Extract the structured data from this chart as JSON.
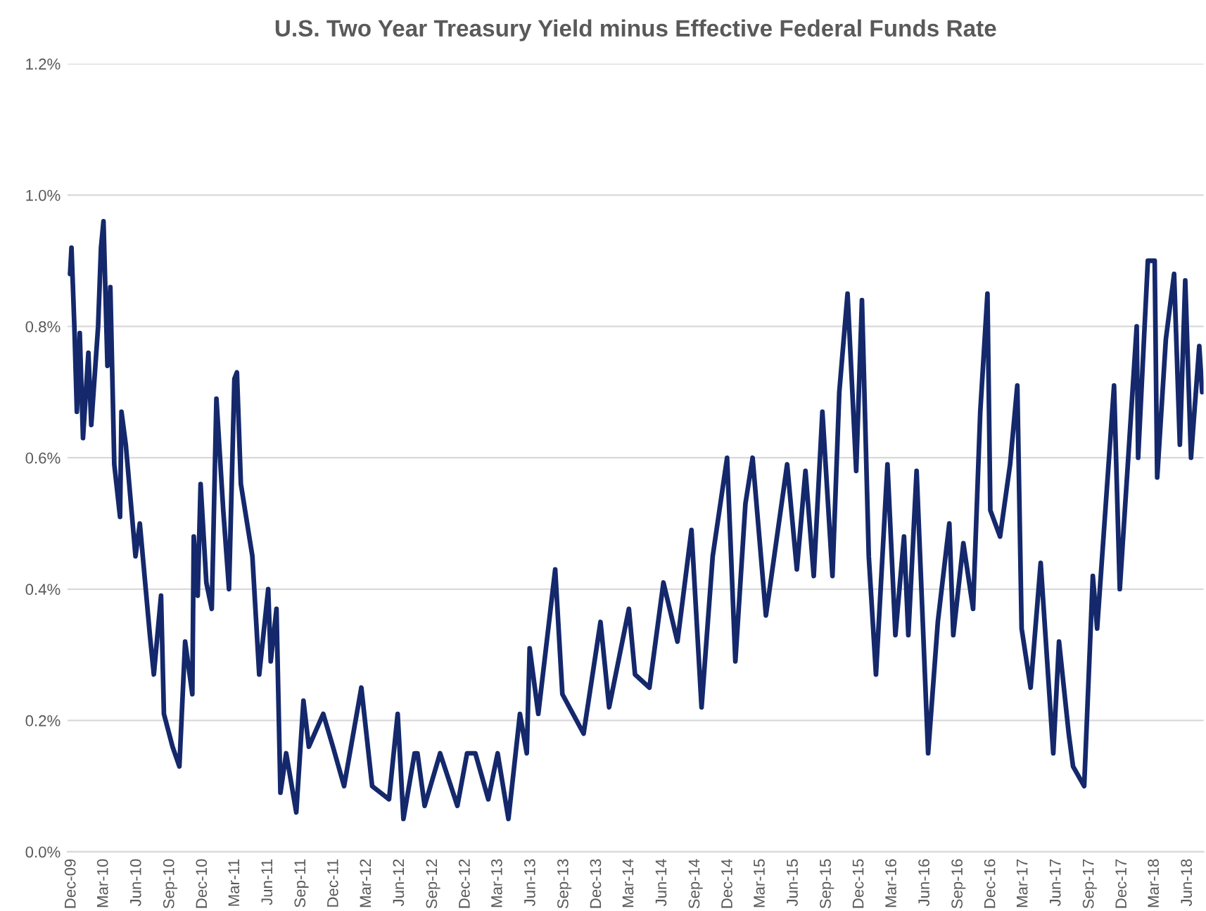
{
  "chart_data": {
    "type": "line",
    "title": "U.S. Two Year Treasury Yield minus Effective Federal Funds Rate",
    "x": [
      "2009-11-27",
      "2009-12-01",
      "2009-12-09",
      "2009-12-16",
      "2009-12-24",
      "2010-01-02",
      "2010-01-17",
      "2010-01-25",
      "2010-02-13",
      "2010-02-21",
      "2010-02-28",
      "2010-03-11",
      "2010-03-19",
      "2010-03-30",
      "2010-04-15",
      "2010-04-19",
      "2010-05-01",
      "2010-05-28",
      "2010-06-09",
      "2010-07-07",
      "2010-07-18",
      "2010-08-07",
      "2010-08-15",
      "2010-09-08",
      "2010-09-27",
      "2010-10-13",
      "2010-11-02",
      "2010-11-06",
      "2010-11-17",
      "2010-11-25",
      "2010-12-11",
      "2010-12-26",
      "2011-01-08",
      "2011-01-27",
      "2011-02-12",
      "2011-02-27",
      "2011-03-06",
      "2011-03-17",
      "2011-04-18",
      "2011-05-07",
      "2011-06-01",
      "2011-06-08",
      "2011-06-24",
      "2011-07-05",
      "2011-07-21",
      "2011-08-18",
      "2011-09-07",
      "2011-09-22",
      "2011-11-01",
      "2011-11-28",
      "2011-12-29",
      "2012-02-15",
      "2012-03-16",
      "2012-05-02",
      "2012-05-26",
      "2012-06-11",
      "2012-07-12",
      "2012-07-20",
      "2012-08-09",
      "2012-09-21",
      "2012-11-08",
      "2012-12-05",
      "2012-12-28",
      "2013-02-02",
      "2013-02-28",
      "2013-03-30",
      "2013-05-01",
      "2013-05-20",
      "2013-05-28",
      "2013-06-21",
      "2013-08-07",
      "2013-08-27",
      "2013-10-25",
      "2013-12-11",
      "2014-01-04",
      "2014-02-28",
      "2014-03-17",
      "2014-04-26",
      "2014-06-04",
      "2014-07-13",
      "2014-08-21",
      "2014-09-18",
      "2014-10-19",
      "2014-11-28",
      "2014-12-21",
      "2015-01-18",
      "2015-02-07",
      "2015-03-16",
      "2015-05-14",
      "2015-06-10",
      "2015-07-04",
      "2015-07-27",
      "2015-08-20",
      "2015-09-17",
      "2015-10-06",
      "2015-10-29",
      "2015-11-22",
      "2015-12-08",
      "2015-12-27",
      "2016-01-16",
      "2016-02-17",
      "2016-03-10",
      "2016-04-03",
      "2016-04-15",
      "2016-05-08",
      "2016-06-09",
      "2016-07-06",
      "2016-08-07",
      "2016-08-18",
      "2016-09-15",
      "2016-10-12",
      "2016-11-01",
      "2016-11-21",
      "2016-11-29",
      "2016-12-26",
      "2017-01-23",
      "2017-02-12",
      "2017-02-24",
      "2017-03-21",
      "2017-04-18",
      "2017-05-23",
      "2017-06-08",
      "2017-07-05",
      "2017-07-17",
      "2017-08-17",
      "2017-09-10",
      "2017-09-22",
      "2017-11-08",
      "2017-11-24",
      "2018-01-10",
      "2018-01-14",
      "2018-02-10",
      "2018-03-01",
      "2018-03-08",
      "2018-04-01",
      "2018-04-24",
      "2018-05-10",
      "2018-05-25",
      "2018-06-10",
      "2018-07-03",
      "2018-07-11"
    ],
    "series": [
      {
        "color": "#14286b",
        "values": [
          0.88,
          0.92,
          0.8,
          0.67,
          0.79,
          0.63,
          0.76,
          0.65,
          0.8,
          0.92,
          0.96,
          0.74,
          0.86,
          0.59,
          0.51,
          0.67,
          0.62,
          0.45,
          0.5,
          0.33,
          0.27,
          0.39,
          0.21,
          0.16,
          0.13,
          0.32,
          0.24,
          0.48,
          0.39,
          0.56,
          0.41,
          0.37,
          0.69,
          0.52,
          0.4,
          0.72,
          0.73,
          0.56,
          0.45,
          0.27,
          0.4,
          0.29,
          0.37,
          0.09,
          0.15,
          0.06,
          0.23,
          0.16,
          0.21,
          0.16,
          0.1,
          0.25,
          0.1,
          0.08,
          0.21,
          0.05,
          0.15,
          0.15,
          0.07,
          0.15,
          0.07,
          0.15,
          0.15,
          0.08,
          0.15,
          0.05,
          0.21,
          0.15,
          0.31,
          0.21,
          0.43,
          0.24,
          0.18,
          0.35,
          0.22,
          0.37,
          0.27,
          0.25,
          0.41,
          0.32,
          0.49,
          0.22,
          0.45,
          0.6,
          0.29,
          0.53,
          0.6,
          0.36,
          0.59,
          0.43,
          0.58,
          0.42,
          0.67,
          0.42,
          0.7,
          0.85,
          0.58,
          0.84,
          0.45,
          0.27,
          0.59,
          0.33,
          0.48,
          0.33,
          0.58,
          0.15,
          0.35,
          0.5,
          0.33,
          0.47,
          0.37,
          0.67,
          0.85,
          0.52,
          0.48,
          0.59,
          0.71,
          0.34,
          0.25,
          0.44,
          0.15,
          0.32,
          0.18,
          0.13,
          0.1,
          0.42,
          0.34,
          0.71,
          0.4,
          0.8,
          0.6,
          0.9,
          0.9,
          0.57,
          0.78,
          0.88,
          0.62,
          0.87,
          0.6,
          0.77,
          0.7
        ]
      }
    ],
    "xlim": [
      "2009-11-20",
      "2018-07-15"
    ],
    "xticks": [
      {
        "value": "2009-12-01",
        "label": "Dec-09"
      },
      {
        "value": "2010-03-01",
        "label": "Mar-10"
      },
      {
        "value": "2010-06-01",
        "label": "Jun-10"
      },
      {
        "value": "2010-09-01",
        "label": "Sep-10"
      },
      {
        "value": "2010-12-01",
        "label": "Dec-10"
      },
      {
        "value": "2011-03-01",
        "label": "Mar-11"
      },
      {
        "value": "2011-06-01",
        "label": "Jun-11"
      },
      {
        "value": "2011-09-01",
        "label": "Sep-11"
      },
      {
        "value": "2011-12-01",
        "label": "Dec-11"
      },
      {
        "value": "2012-03-01",
        "label": "Mar-12"
      },
      {
        "value": "2012-06-01",
        "label": "Jun-12"
      },
      {
        "value": "2012-09-01",
        "label": "Sep-12"
      },
      {
        "value": "2012-12-01",
        "label": "Dec-12"
      },
      {
        "value": "2013-03-01",
        "label": "Mar-13"
      },
      {
        "value": "2013-06-01",
        "label": "Jun-13"
      },
      {
        "value": "2013-09-01",
        "label": "Sep-13"
      },
      {
        "value": "2013-12-01",
        "label": "Dec-13"
      },
      {
        "value": "2014-03-01",
        "label": "Mar-14"
      },
      {
        "value": "2014-06-01",
        "label": "Jun-14"
      },
      {
        "value": "2014-09-01",
        "label": "Sep-14"
      },
      {
        "value": "2014-12-01",
        "label": "Dec-14"
      },
      {
        "value": "2015-03-01",
        "label": "Mar-15"
      },
      {
        "value": "2015-06-01",
        "label": "Jun-15"
      },
      {
        "value": "2015-09-01",
        "label": "Sep-15"
      },
      {
        "value": "2015-12-01",
        "label": "Dec-15"
      },
      {
        "value": "2016-03-01",
        "label": "Mar-16"
      },
      {
        "value": "2016-06-01",
        "label": "Jun-16"
      },
      {
        "value": "2016-09-01",
        "label": "Sep-16"
      },
      {
        "value": "2016-12-01",
        "label": "Dec-16"
      },
      {
        "value": "2017-03-01",
        "label": "Mar-17"
      },
      {
        "value": "2017-06-01",
        "label": "Jun-17"
      },
      {
        "value": "2017-09-01",
        "label": "Sep-17"
      },
      {
        "value": "2017-12-01",
        "label": "Dec-17"
      },
      {
        "value": "2018-03-01",
        "label": "Mar-18"
      },
      {
        "value": "2018-06-01",
        "label": "Jun-18"
      }
    ],
    "ylim": [
      0,
      1.2
    ],
    "yticks": [
      {
        "value": 0,
        "label": "0.0%"
      },
      {
        "value": 0.2,
        "label": "0.2%"
      },
      {
        "value": 0.4,
        "label": "0.4%"
      },
      {
        "value": 0.6,
        "label": "0.6%"
      },
      {
        "value": 0.8,
        "label": "0.8%"
      },
      {
        "value": 1.0,
        "label": "1.0%"
      },
      {
        "value": 1.2,
        "label": "1.2%"
      }
    ],
    "grid": "y",
    "marker": "none",
    "line_style": "solid"
  }
}
